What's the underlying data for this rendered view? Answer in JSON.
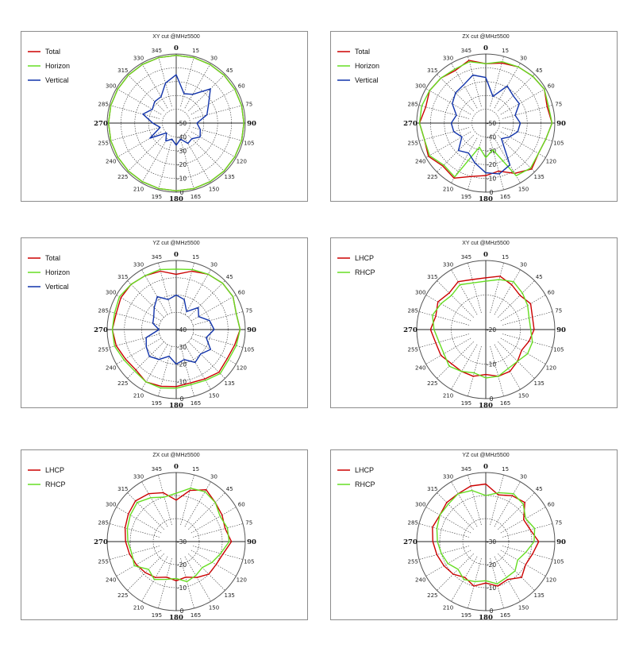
{
  "chart_data": [
    {
      "type": "polar",
      "title": "XY cut @MHz5500",
      "rings": [
        -50,
        -40,
        -30,
        -20,
        -10,
        0
      ],
      "ring_labels": [
        "-50",
        "-40",
        "-30",
        "-20",
        "-10",
        "0"
      ],
      "angles": [
        "0",
        "15",
        "30",
        "45",
        "60",
        "75",
        "90",
        "105",
        "120",
        "135",
        "150",
        "165",
        "180",
        "195",
        "210",
        "225",
        "240",
        "255",
        "270",
        "285",
        "300",
        "315",
        "330",
        "345"
      ],
      "legend_labels": [
        "Total",
        "Horizon",
        "Vertical"
      ],
      "series": [
        {
          "name": "Total",
          "color": "#cc0000",
          "values": [
            -1,
            -1,
            -1,
            -1,
            -1,
            -1,
            -1,
            -1,
            -1,
            -1,
            -1,
            -1,
            -1,
            -1,
            -1,
            -1,
            -1,
            -1,
            -1,
            -1,
            -1,
            -1,
            -1,
            -1
          ]
        },
        {
          "name": "Horizon",
          "color": "#66dd22",
          "values": [
            -1,
            -1,
            -1,
            -1,
            -1,
            -1,
            -1,
            -1,
            -1,
            -1,
            -1,
            -1,
            -1,
            -1,
            -1,
            -1,
            -1,
            -1,
            -1,
            -1,
            -1,
            -1,
            -1,
            -1
          ]
        },
        {
          "name": "Vertical",
          "color": "#1133aa",
          "values": [
            -15,
            -28,
            -26,
            -15,
            -23,
            -27,
            -35,
            -32,
            -30,
            -34,
            -33,
            -38,
            -34,
            -38,
            -35,
            -40,
            -28,
            -38,
            -33,
            -25,
            -30,
            -28,
            -28,
            -20
          ]
        }
      ]
    },
    {
      "type": "polar",
      "title": "ZX cut @MHz5500",
      "rings": [
        -50,
        -40,
        -30,
        -20,
        -10,
        0
      ],
      "ring_labels": [
        "-50",
        "-40",
        "-30",
        "-20",
        "-10",
        "0"
      ],
      "angles": [
        "0",
        "15",
        "30",
        "45",
        "60",
        "75",
        "90",
        "105",
        "120",
        "135",
        "150",
        "165",
        "180",
        "195",
        "210",
        "225",
        "240",
        "255",
        "270",
        "285",
        "300",
        "315",
        "330",
        "345"
      ],
      "legend_labels": [
        "Total",
        "Horizon",
        "Vertical"
      ],
      "series": [
        {
          "name": "Total",
          "color": "#cc0000",
          "values": [
            -7,
            -5,
            -3,
            -2,
            -1,
            -4,
            -2,
            -5,
            -6,
            -3,
            -8,
            -14,
            -12,
            -10,
            -4,
            -6,
            -2,
            -4,
            -2,
            -5,
            -3,
            -4,
            -6,
            -3
          ]
        },
        {
          "name": "Horizon",
          "color": "#66dd22",
          "values": [
            -7,
            -4,
            -3,
            -2,
            -1,
            -3,
            -2,
            -5,
            -6,
            -4,
            -6,
            -30,
            -25,
            -32,
            -5,
            -7,
            -3,
            -4,
            -2,
            -2,
            -3,
            -4,
            -5,
            -4
          ]
        },
        {
          "name": "Vertical",
          "color": "#1133aa",
          "values": [
            -17,
            -30,
            -19,
            -22,
            -22,
            -28,
            -25,
            -26,
            -30,
            -34,
            -15,
            -12,
            -14,
            -20,
            -25,
            -22,
            -30,
            -26,
            -25,
            -28,
            -22,
            -19,
            -18,
            -14
          ]
        }
      ]
    },
    {
      "type": "polar",
      "title": "YZ cut @MHz5500",
      "rings": [
        -40,
        -30,
        -20,
        -10,
        0
      ],
      "ring_labels": [
        "-40",
        "-30",
        "-20",
        "-10",
        "0"
      ],
      "angles": [
        "0",
        "15",
        "30",
        "45",
        "60",
        "75",
        "90",
        "105",
        "120",
        "135",
        "150",
        "165",
        "180",
        "195",
        "210",
        "225",
        "240",
        "255",
        "270",
        "285",
        "300",
        "315",
        "330",
        "345"
      ],
      "legend_labels": [
        "Total",
        "Horizon",
        "Vertical"
      ],
      "series": [
        {
          "name": "Total",
          "color": "#cc0000",
          "values": [
            -8,
            -5,
            -3,
            -2,
            -2,
            -4,
            -3,
            -5,
            -6,
            -5,
            -7,
            -8,
            -7,
            -6,
            -5,
            -7,
            -6,
            -4,
            -3,
            -4,
            -3,
            -3,
            -4,
            -5
          ]
        },
        {
          "name": "Horizon",
          "color": "#66dd22",
          "values": [
            -5,
            -4,
            -3,
            -2,
            -2,
            -4,
            -3,
            -4,
            -5,
            -4,
            -6,
            -7,
            -6,
            -5,
            -5,
            -6,
            -5,
            -3,
            -3,
            -3,
            -2,
            -3,
            -4,
            -4
          ]
        },
        {
          "name": "Vertical",
          "color": "#1133aa",
          "values": [
            -20,
            -22,
            -28,
            -22,
            -25,
            -20,
            -18,
            -22,
            -17,
            -20,
            -18,
            -22,
            -20,
            -24,
            -20,
            -18,
            -20,
            -22,
            -30,
            -26,
            -25,
            -22,
            -18,
            -22
          ]
        }
      ]
    },
    {
      "type": "polar",
      "title": "XY cut @MHz5500",
      "rings": [
        -20,
        -10,
        0
      ],
      "ring_labels": [
        "-20",
        "-10",
        "0"
      ],
      "angles": [
        "0",
        "15",
        "30",
        "45",
        "60",
        "75",
        "90",
        "105",
        "120",
        "135",
        "150",
        "165",
        "180",
        "195",
        "210",
        "225",
        "240",
        "255",
        "270",
        "285",
        "300",
        "315",
        "330",
        "345"
      ],
      "legend_labels": [
        "LHCP",
        "RHCP"
      ],
      "series": [
        {
          "name": "LHCP",
          "color": "#cc0000",
          "values": [
            -5,
            -4,
            -5,
            -6,
            -5,
            -6,
            -6,
            -7,
            -8,
            -7,
            -6,
            -6,
            -7,
            -6,
            -6,
            -6,
            -5,
            -5,
            -4,
            -5,
            -4,
            -5,
            -4,
            -5
          ]
        },
        {
          "name": "RHCP",
          "color": "#66dd22",
          "values": [
            -6,
            -5,
            -4,
            -5,
            -6,
            -7,
            -7,
            -6,
            -6,
            -7,
            -7,
            -6,
            -6,
            -7,
            -6,
            -5,
            -6,
            -6,
            -5,
            -4,
            -5,
            -6,
            -5,
            -6
          ]
        }
      ]
    },
    {
      "type": "polar",
      "title": "ZX cut @MHz5500",
      "rings": [
        -30,
        -20,
        -10,
        0
      ],
      "ring_labels": [
        "-30",
        "-20",
        "-10",
        "0"
      ],
      "angles": [
        "0",
        "15",
        "30",
        "45",
        "60",
        "75",
        "90",
        "105",
        "120",
        "135",
        "150",
        "165",
        "180",
        "195",
        "210",
        "225",
        "240",
        "255",
        "270",
        "285",
        "300",
        "315",
        "330",
        "345"
      ],
      "legend_labels": [
        "LHCP",
        "RHCP"
      ],
      "series": [
        {
          "name": "LHCP",
          "color": "#cc0000",
          "values": [
            -12,
            -7,
            -4,
            -6,
            -7,
            -8,
            -6,
            -9,
            -10,
            -10,
            -12,
            -14,
            -13,
            -14,
            -12,
            -11,
            -10,
            -9,
            -8,
            -7,
            -6,
            -5,
            -6,
            -8
          ]
        },
        {
          "name": "RHCP",
          "color": "#66dd22",
          "values": [
            -9,
            -6,
            -5,
            -6,
            -8,
            -7,
            -7,
            -10,
            -12,
            -14,
            -13,
            -12,
            -14,
            -13,
            -11,
            -13,
            -9,
            -10,
            -9,
            -8,
            -7,
            -6,
            -8,
            -10
          ]
        }
      ]
    },
    {
      "type": "polar",
      "title": "YZ cut @MHz5500",
      "rings": [
        -30,
        -20,
        -10,
        0
      ],
      "ring_labels": [
        "-30",
        "-20",
        "-10",
        "0"
      ],
      "angles": [
        "0",
        "15",
        "30",
        "45",
        "60",
        "75",
        "90",
        "105",
        "120",
        "135",
        "150",
        "165",
        "180",
        "195",
        "210",
        "225",
        "240",
        "255",
        "270",
        "285",
        "300",
        "315",
        "330",
        "345"
      ],
      "legend_labels": [
        "LHCP",
        "RHCP"
      ],
      "series": [
        {
          "name": "LHCP",
          "color": "#cc0000",
          "values": [
            -5,
            -9,
            -7,
            -6,
            -11,
            -10,
            -7,
            -9,
            -10,
            -8,
            -11,
            -10,
            -12,
            -10,
            -12,
            -10,
            -9,
            -8,
            -7,
            -6,
            -7,
            -6,
            -6,
            -5
          ]
        },
        {
          "name": "RHCP",
          "color": "#66dd22",
          "values": [
            -10,
            -8,
            -6,
            -7,
            -10,
            -8,
            -9,
            -12,
            -14,
            -12,
            -12,
            -11,
            -13,
            -12,
            -11,
            -13,
            -11,
            -10,
            -9,
            -8,
            -7,
            -7,
            -6,
            -7
          ]
        }
      ]
    }
  ]
}
